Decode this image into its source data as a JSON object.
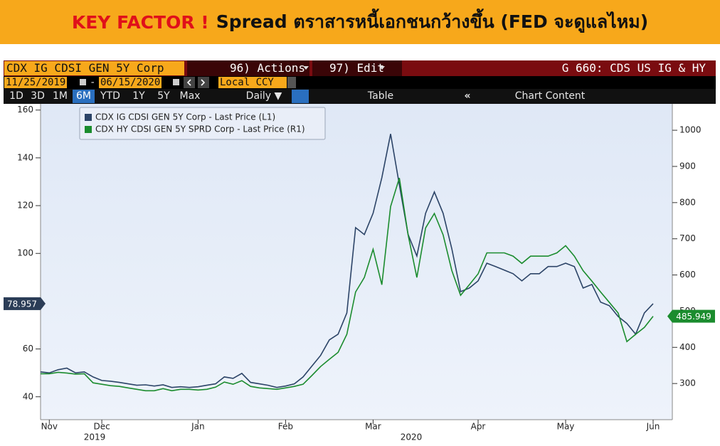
{
  "header": {
    "key": "KEY FACTOR !",
    "title": "Spread ตราสารหนี้เอกชนกว้างขึ้น (FED จะดูแลไหม)"
  },
  "ui": {
    "security": "CDX IG CDSI GEN 5Y Corp",
    "actions": "96) Actions",
    "edit": "97) Edit",
    "function": "G 660: CDS US IG & HY",
    "start_date": "11/25/2019",
    "dash": "-",
    "end_date": "06/15/2020",
    "currency": "Local CCY",
    "periods": [
      "1D",
      "3D",
      "1M",
      "6M",
      "YTD",
      "1Y",
      "5Y",
      "Max"
    ],
    "active_period": "6M",
    "frequency": "Daily ▼",
    "table": "Table",
    "chart_content": "Chart Content"
  },
  "chart_data": {
    "type": "line",
    "categories": [
      null,
      "Nov",
      null,
      null,
      null,
      null,
      null,
      "Dec",
      null,
      null,
      null,
      null,
      null,
      null,
      null,
      null,
      null,
      null,
      "Jan",
      null,
      null,
      null,
      null,
      null,
      null,
      null,
      null,
      null,
      "Feb",
      null,
      null,
      null,
      null,
      null,
      null,
      null,
      null,
      null,
      "Mar",
      null,
      null,
      null,
      null,
      null,
      null,
      null,
      null,
      null,
      null,
      null,
      "Apr",
      null,
      null,
      null,
      null,
      null,
      null,
      null,
      null,
      null,
      "May",
      null,
      null,
      null,
      null,
      null,
      null,
      null,
      null,
      null,
      "Jun"
    ],
    "year_labels": [
      "2019",
      "2020"
    ],
    "series": [
      {
        "name": "CDX IG CDSI GEN 5Y Corp - Last Price (L1)",
        "color": "#2c4467",
        "values": [
          50.4,
          50,
          51.3,
          52,
          50,
          50.4,
          48.3,
          46.8,
          46.5,
          46,
          45.4,
          44.8,
          45,
          44.5,
          45,
          43.9,
          44.2,
          43.9,
          44.2,
          44.8,
          45.4,
          48.3,
          47.7,
          49.8,
          46,
          45.4,
          44.8,
          43.9,
          44.5,
          45.4,
          48.3,
          52.8,
          57.3,
          63.8,
          66.2,
          75.1,
          110.8,
          107.9,
          116.8,
          131.7,
          150,
          128.7,
          107.9,
          98.9,
          116.8,
          125.7,
          116.8,
          101.9,
          84,
          85.5,
          88.5,
          95.9,
          94.5,
          93,
          91.5,
          88.5,
          91.5,
          91.5,
          94.5,
          94.5,
          95.9,
          94.5,
          85.5,
          87,
          79.6,
          78.1,
          73.6,
          70.7,
          66.2,
          75.1,
          78.957
        ]
      },
      {
        "name": "CDX HY CDSI GEN 5Y SPRD Corp - Last Price (R1)",
        "color": "#1b8c2e",
        "axis": "y2",
        "values": [
          327,
          327,
          331,
          329,
          326,
          327,
          302,
          298,
          294,
          292,
          288,
          284,
          280,
          280,
          286,
          280,
          284,
          284,
          282,
          284,
          290,
          304,
          298,
          308,
          292,
          288,
          286,
          284,
          288,
          292,
          298,
          322,
          347,
          367,
          386,
          436,
          553,
          593,
          671,
          573,
          789,
          868,
          711,
          593,
          730,
          770,
          711,
          612,
          544,
          573,
          603,
          661,
          661,
          661,
          652,
          632,
          652,
          652,
          652,
          661,
          681,
          652,
          612,
          583,
          553,
          524,
          495,
          416,
          436,
          455,
          485.949
        ]
      }
    ],
    "ylim": [
      31,
      162
    ],
    "yticks": [
      40,
      60,
      100,
      120,
      140,
      160
    ],
    "y2lim": [
      204,
      1069
    ],
    "y2ticks": [
      300,
      400,
      500,
      600,
      700,
      800,
      900,
      1000
    ]
  }
}
